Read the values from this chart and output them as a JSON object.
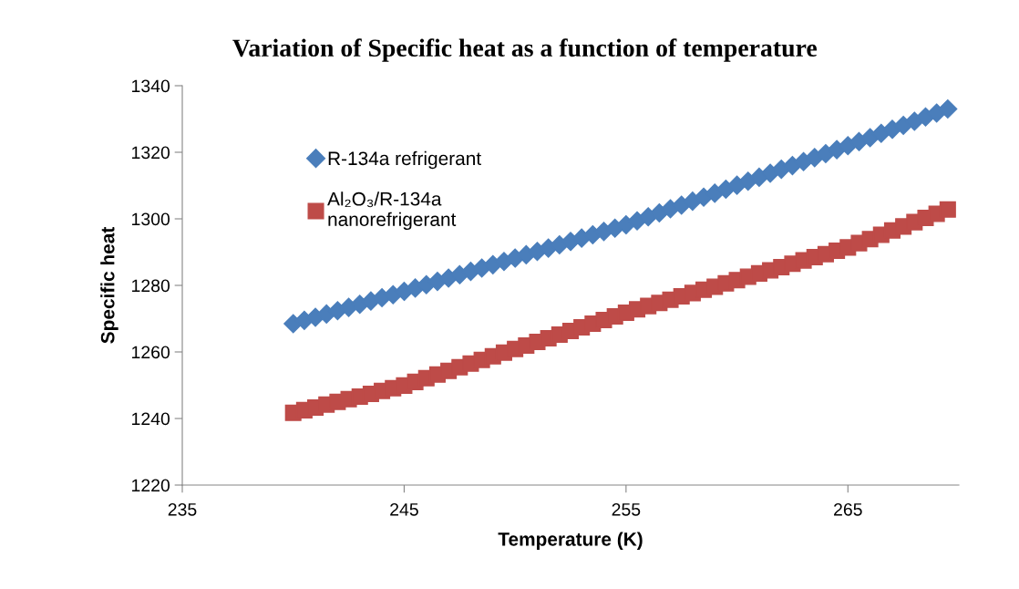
{
  "chart_data": {
    "type": "scatter",
    "title": "Variation of Specific heat as a function of temperature",
    "xlabel": "Temperature (K)",
    "ylabel": "Specific heat",
    "xlim": [
      235,
      270
    ],
    "xticks": [
      235,
      245,
      255,
      265
    ],
    "ylim": [
      1220,
      1340
    ],
    "yticks": [
      1220,
      1240,
      1260,
      1280,
      1300,
      1320,
      1340
    ],
    "grid": false,
    "legend": "top left",
    "x": [
      240,
      240.5,
      241,
      241.5,
      242,
      242.5,
      243,
      243.5,
      244,
      244.5,
      245,
      245.5,
      246,
      246.5,
      247,
      247.5,
      248,
      248.5,
      249,
      249.5,
      250,
      250.5,
      251,
      251.5,
      252,
      252.5,
      253,
      253.5,
      254,
      254.5,
      255,
      255.5,
      256,
      256.5,
      257,
      257.5,
      258,
      258.5,
      259,
      259.5,
      260,
      260.5,
      261,
      261.5,
      262,
      262.5,
      263,
      263.5,
      264,
      264.5,
      265,
      265.5,
      266,
      266.5,
      267,
      267.5,
      268,
      268.5,
      269,
      269.5
    ],
    "series": [
      {
        "name": "R-134a refrigerant",
        "color": "#4a7ebb",
        "marker": "diamond",
        "values": [
          1268.5,
          1269.5,
          1270.4,
          1271.4,
          1272.4,
          1273.4,
          1274.3,
          1275.3,
          1276.3,
          1277.2,
          1278.2,
          1279.2,
          1280.2,
          1281.2,
          1282.2,
          1283.2,
          1284.2,
          1285.2,
          1286.2,
          1287.2,
          1288.2,
          1289.2,
          1290.2,
          1291.2,
          1292.2,
          1293.2,
          1294.2,
          1295.2,
          1296.2,
          1297.2,
          1298.2,
          1299.4,
          1300.6,
          1301.8,
          1303.0,
          1304.1,
          1305.3,
          1306.5,
          1307.7,
          1308.9,
          1310.1,
          1311.3,
          1312.5,
          1313.7,
          1314.9,
          1316.0,
          1317.2,
          1318.4,
          1319.6,
          1320.8,
          1322,
          1323.2,
          1324.4,
          1325.7,
          1326.9,
          1328.1,
          1329.3,
          1330.6,
          1331.8,
          1333
        ]
      },
      {
        "name": "Al₂O₃/R-134a\nnanorefrigerant",
        "color": "#be4b48",
        "marker": "square",
        "values": [
          1241.7,
          1242.5,
          1243.3,
          1244.2,
          1245.0,
          1245.8,
          1246.6,
          1247.4,
          1248.3,
          1249.1,
          1249.9,
          1251.0,
          1252.1,
          1253.2,
          1254.3,
          1255.4,
          1256.5,
          1257.6,
          1258.7,
          1259.8,
          1260.9,
          1261.9,
          1263.0,
          1264.1,
          1265.2,
          1266.3,
          1267.4,
          1268.5,
          1269.6,
          1270.7,
          1271.8,
          1272.8,
          1273.8,
          1274.7,
          1275.7,
          1276.7,
          1277.7,
          1278.7,
          1279.6,
          1280.6,
          1281.6,
          1282.6,
          1283.6,
          1284.5,
          1285.5,
          1286.5,
          1287.5,
          1288.5,
          1289.4,
          1290.4,
          1291.4,
          1292.7,
          1293.9,
          1295.2,
          1296.5,
          1297.7,
          1299.0,
          1300.3,
          1301.5,
          1302.8
        ]
      }
    ]
  }
}
